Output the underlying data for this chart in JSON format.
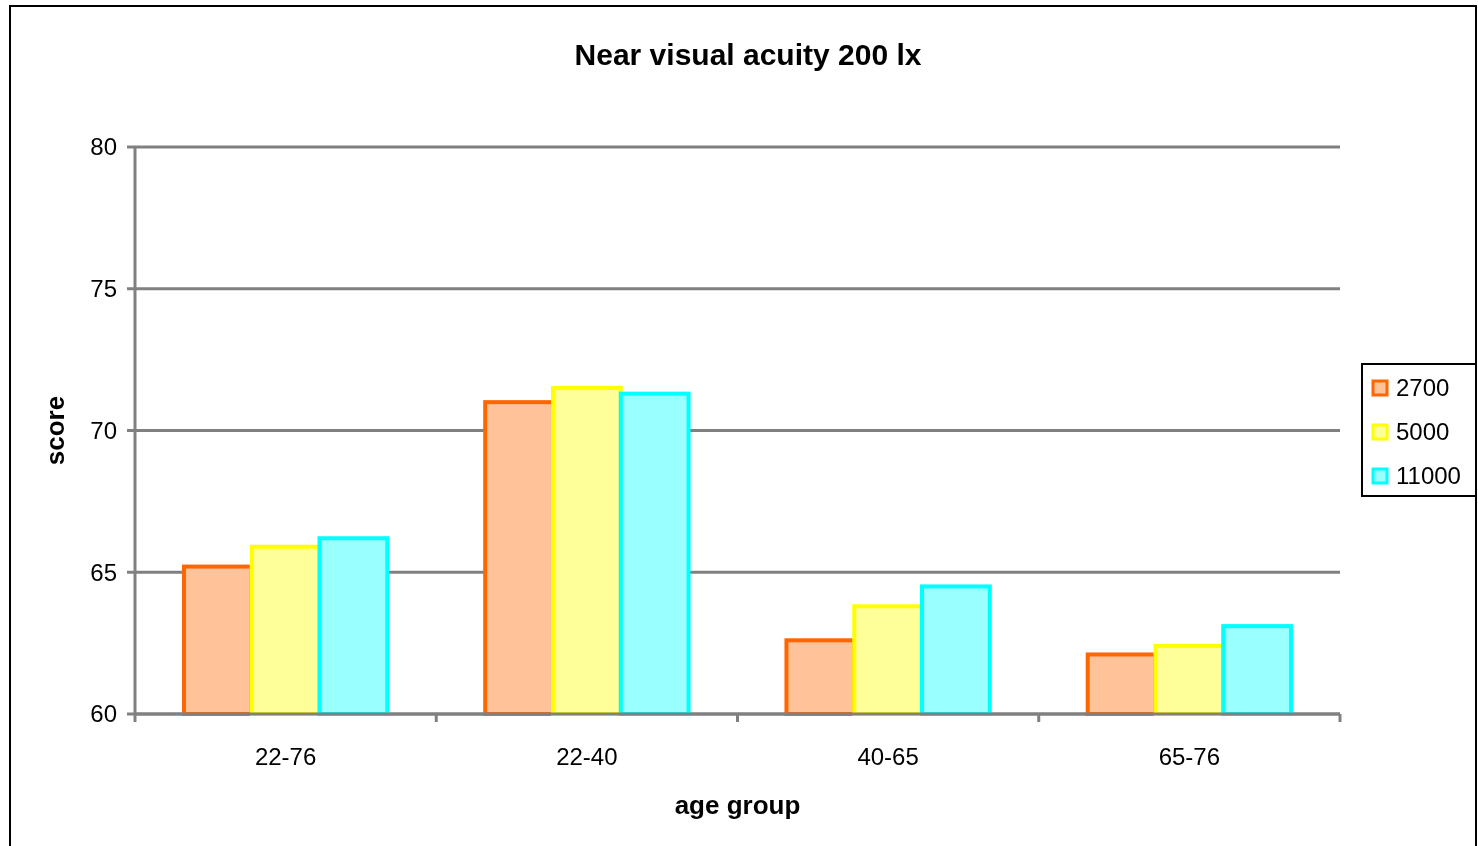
{
  "chart_data": {
    "type": "bar",
    "title": "Near visual acuity 200 lx",
    "xlabel": "age group",
    "ylabel": "score",
    "categories": [
      "22-76",
      "22-40",
      "40-65",
      "65-76"
    ],
    "series": [
      {
        "name": "2700",
        "color": "#ff6600",
        "values": [
          65.2,
          71.0,
          62.6,
          62.1
        ]
      },
      {
        "name": "5000",
        "color": "#ffff00",
        "values": [
          65.9,
          71.5,
          63.8,
          62.4
        ]
      },
      {
        "name": "11000",
        "color": "#00ffff",
        "values": [
          66.2,
          71.3,
          64.5,
          63.1
        ]
      }
    ],
    "ylim": [
      60,
      80
    ],
    "yticks": [
      60,
      65,
      70,
      75,
      80
    ],
    "grid": "y",
    "legend": "right"
  }
}
